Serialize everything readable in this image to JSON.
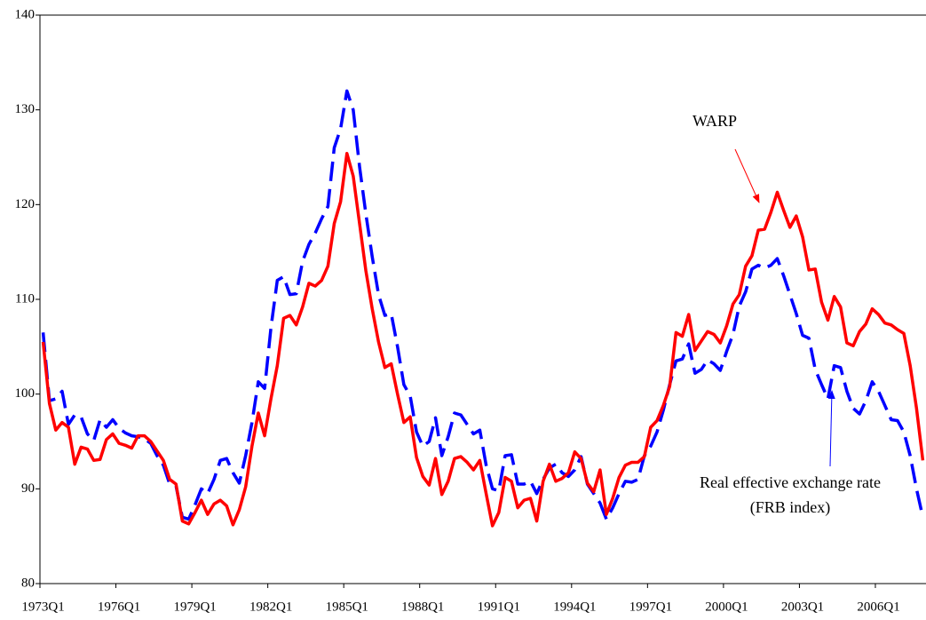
{
  "chart_data": {
    "type": "line",
    "categories": [
      "1973Q1",
      null,
      null,
      null,
      null,
      null,
      null,
      null,
      null,
      null,
      null,
      null,
      "1976Q1",
      null,
      null,
      null,
      null,
      null,
      null,
      null,
      null,
      null,
      null,
      null,
      "1979Q1",
      null,
      null,
      null,
      null,
      null,
      null,
      null,
      null,
      null,
      null,
      null,
      "1982Q1",
      null,
      null,
      null,
      null,
      null,
      null,
      null,
      null,
      null,
      null,
      null,
      "1985Q1",
      null,
      null,
      null,
      null,
      null,
      null,
      null,
      null,
      null,
      null,
      null,
      "1988Q1",
      null,
      null,
      null,
      null,
      null,
      null,
      null,
      null,
      null,
      null,
      null,
      "1991Q1",
      null,
      null,
      null,
      null,
      null,
      null,
      null,
      null,
      null,
      null,
      null,
      "1994Q1",
      null,
      null,
      null,
      null,
      null,
      null,
      null,
      null,
      null,
      null,
      null,
      "1997Q1",
      null,
      null,
      null,
      null,
      null,
      null,
      null,
      null,
      null,
      null,
      null,
      "2000Q1",
      null,
      null,
      null,
      null,
      null,
      null,
      null,
      null,
      null,
      null,
      null,
      "2003Q1",
      null,
      null,
      null,
      null,
      null,
      null,
      null,
      null,
      null,
      null,
      null,
      "2006Q1",
      null,
      null,
      null,
      null,
      null,
      null,
      null
    ],
    "series": [
      {
        "color": "#ff0000",
        "dashed": false,
        "values": [
          105.5,
          99,
          96.2,
          97,
          96.5,
          92.6,
          94.4,
          94.2,
          93,
          93.1,
          95.2,
          95.8,
          94.8,
          94.6,
          94.3,
          95.6,
          95.6,
          95,
          94,
          93,
          91,
          90.5,
          86.6,
          86.3,
          87.5,
          88.8,
          87.3,
          88.4,
          88.8,
          88.2,
          86.2,
          87.8,
          90.2,
          94.5,
          98,
          95.6,
          99.5,
          103,
          108,
          108.3,
          107.3,
          109.2,
          111.7,
          111.4,
          112,
          113.5,
          118,
          120.3,
          125.4,
          123,
          118,
          113,
          109,
          105.5,
          102.8,
          103.2,
          100,
          97,
          97.6,
          93.3,
          91.3,
          90.4,
          93.2,
          89.4,
          90.8,
          93.2,
          93.4,
          92.8,
          92,
          93,
          89.5,
          86.1,
          87.5,
          91.2,
          90.8,
          88,
          88.8,
          89,
          86.6,
          90.8,
          92.6,
          90.8,
          91.1,
          91.7,
          93.9,
          93.2,
          90.6,
          89.7,
          92,
          87.3,
          89,
          91.2,
          92.5,
          92.8,
          92.8,
          93.4,
          96.5,
          97.2,
          98.8,
          100.8,
          106.5,
          106.1,
          108.4,
          104.6,
          105.6,
          106.6,
          106.3,
          105.4,
          107.2,
          109.5,
          110.5,
          113.5,
          114.6,
          117.3,
          117.4,
          119.2,
          121.3,
          119.4,
          117.6,
          118.8,
          116.6,
          113.1,
          113.2,
          109.7,
          107.8,
          110.3,
          109.2,
          105.4,
          105.1,
          106.6,
          107.4,
          109,
          108.4,
          107.5,
          107.3,
          106.8,
          106.4,
          103,
          98.5,
          93
        ]
      },
      {
        "color": "#0000ff",
        "dashed": true,
        "values": [
          106.5,
          99.3,
          99.5,
          100.3,
          96.8,
          97.8,
          97.6,
          95.8,
          95.1,
          97.3,
          96.5,
          97.3,
          96.4,
          95.9,
          95.6,
          95.5,
          95.3,
          94.8,
          93.5,
          92.5,
          90.5,
          90.3,
          87,
          86.8,
          88.3,
          90,
          89.5,
          91,
          93,
          93.2,
          91.7,
          90.6,
          93.5,
          97,
          101.3,
          100.6,
          107,
          112,
          112.4,
          110.5,
          110.6,
          114,
          115.8,
          117,
          118.5,
          119.8,
          126,
          128,
          132,
          130,
          124,
          119,
          114.5,
          110.5,
          108.3,
          108.5,
          105,
          101,
          99.8,
          96,
          94.5,
          95,
          97.5,
          93.5,
          95.5,
          98,
          97.8,
          96.8,
          95.8,
          96.2,
          92.5,
          90,
          89.8,
          93.5,
          93.6,
          90.5,
          90.5,
          90.8,
          89.5,
          91,
          92.2,
          92.6,
          91.7,
          91.3,
          92,
          93.4,
          90.5,
          89.5,
          88.5,
          86.8,
          88,
          89.5,
          90.8,
          90.7,
          91,
          93.5,
          94.5,
          96,
          98.3,
          101,
          103.5,
          103.7,
          105.3,
          102.2,
          102.6,
          103.6,
          103.2,
          102.5,
          104.5,
          106.3,
          109.3,
          110.8,
          113.2,
          113.6,
          113.3,
          113.6,
          114.3,
          112.5,
          110.5,
          108.5,
          106.2,
          105.9,
          102.6,
          101,
          99.5,
          103,
          102.8,
          100.3,
          98.5,
          97.9,
          99.3,
          101.3,
          100.3,
          98.8,
          97.3,
          97.2,
          96,
          93.5,
          90,
          87
        ]
      }
    ],
    "annotations": [
      {
        "lines": [
          "WARP"
        ],
        "color": "#ff0000"
      },
      {
        "lines": [
          "Real effective exchange rate",
          "(FRB index)"
        ],
        "color": "#0000ff"
      }
    ],
    "ylim": [
      80,
      140
    ],
    "yticks": [
      80,
      90,
      100,
      110,
      120,
      130,
      140
    ],
    "grid": false
  }
}
